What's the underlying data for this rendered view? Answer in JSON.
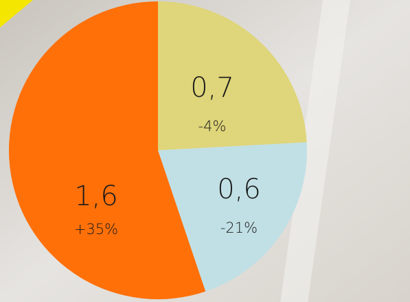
{
  "chart_data": {
    "type": "pie",
    "categories": [
      null,
      null,
      null
    ],
    "values": [
      0.7,
      0.6,
      1.6
    ],
    "value_labels": [
      "0,7",
      "0,6",
      "1,6"
    ],
    "change_labels": [
      "-4%",
      "-21%",
      "+35%"
    ],
    "colors": [
      "#dfd57a",
      "#c1e0e5",
      "#ff7009"
    ]
  }
}
